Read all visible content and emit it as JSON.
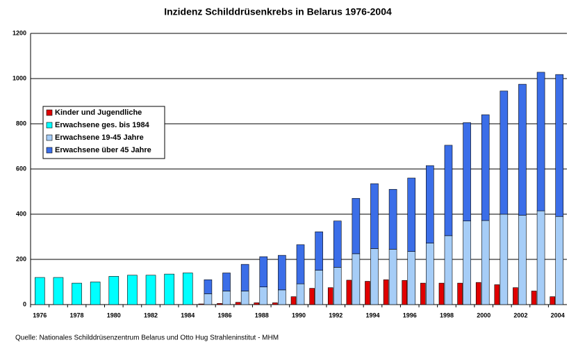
{
  "chart_data": {
    "type": "bar",
    "title": "Inzidenz Schilddrüsenkrebs in Belarus 1976-2004",
    "source": "Quelle: Nationales Schilddrüsenzentrum Belarus und Otto Hug Strahleninstitut - MHM",
    "categories": [
      "1976",
      null,
      "1978",
      null,
      "1980",
      null,
      "1982",
      null,
      "1984",
      null,
      "1986",
      null,
      "1988",
      null,
      "1990",
      null,
      "1992",
      null,
      "1994",
      null,
      "1996",
      null,
      "1998",
      null,
      "2000",
      null,
      "2002",
      null,
      "2004"
    ],
    "series": [
      {
        "name": "Kinder und Jugendliche",
        "color": "#e00000",
        "values": [
          null,
          null,
          null,
          null,
          null,
          null,
          null,
          null,
          null,
          3,
          5,
          10,
          8,
          8,
          35,
          72,
          75,
          108,
          103,
          110,
          107,
          95,
          95,
          95,
          98,
          88,
          75,
          60,
          35
        ]
      },
      {
        "name": "Erwachsene ges. bis 1984",
        "color": "#00ffff",
        "values": [
          120,
          120,
          95,
          100,
          125,
          130,
          130,
          135,
          140,
          null,
          null,
          null,
          null,
          null,
          null,
          null,
          null,
          null,
          null,
          null,
          null,
          null,
          null,
          null,
          null,
          null,
          null,
          null,
          null
        ]
      },
      {
        "name": "Erwachsene 19-45 Jahre",
        "color": "#a6cdf7",
        "values": [
          null,
          null,
          null,
          null,
          null,
          null,
          null,
          null,
          null,
          48,
          60,
          60,
          78,
          65,
          92,
          152,
          165,
          225,
          248,
          245,
          235,
          272,
          305,
          370,
          372,
          400,
          395,
          415,
          390
        ]
      },
      {
        "name": "Erwachsene über 45 Jahre",
        "color": "#3b6ee8",
        "values": [
          null,
          null,
          null,
          null,
          null,
          null,
          null,
          null,
          null,
          62,
          80,
          118,
          134,
          153,
          173,
          170,
          205,
          245,
          287,
          265,
          325,
          343,
          400,
          435,
          468,
          545,
          580,
          613,
          628
        ]
      }
    ],
    "ylim": [
      0,
      1200
    ],
    "yticks": [
      0,
      200,
      400,
      600,
      800,
      1000,
      1200
    ],
    "grid": true
  }
}
